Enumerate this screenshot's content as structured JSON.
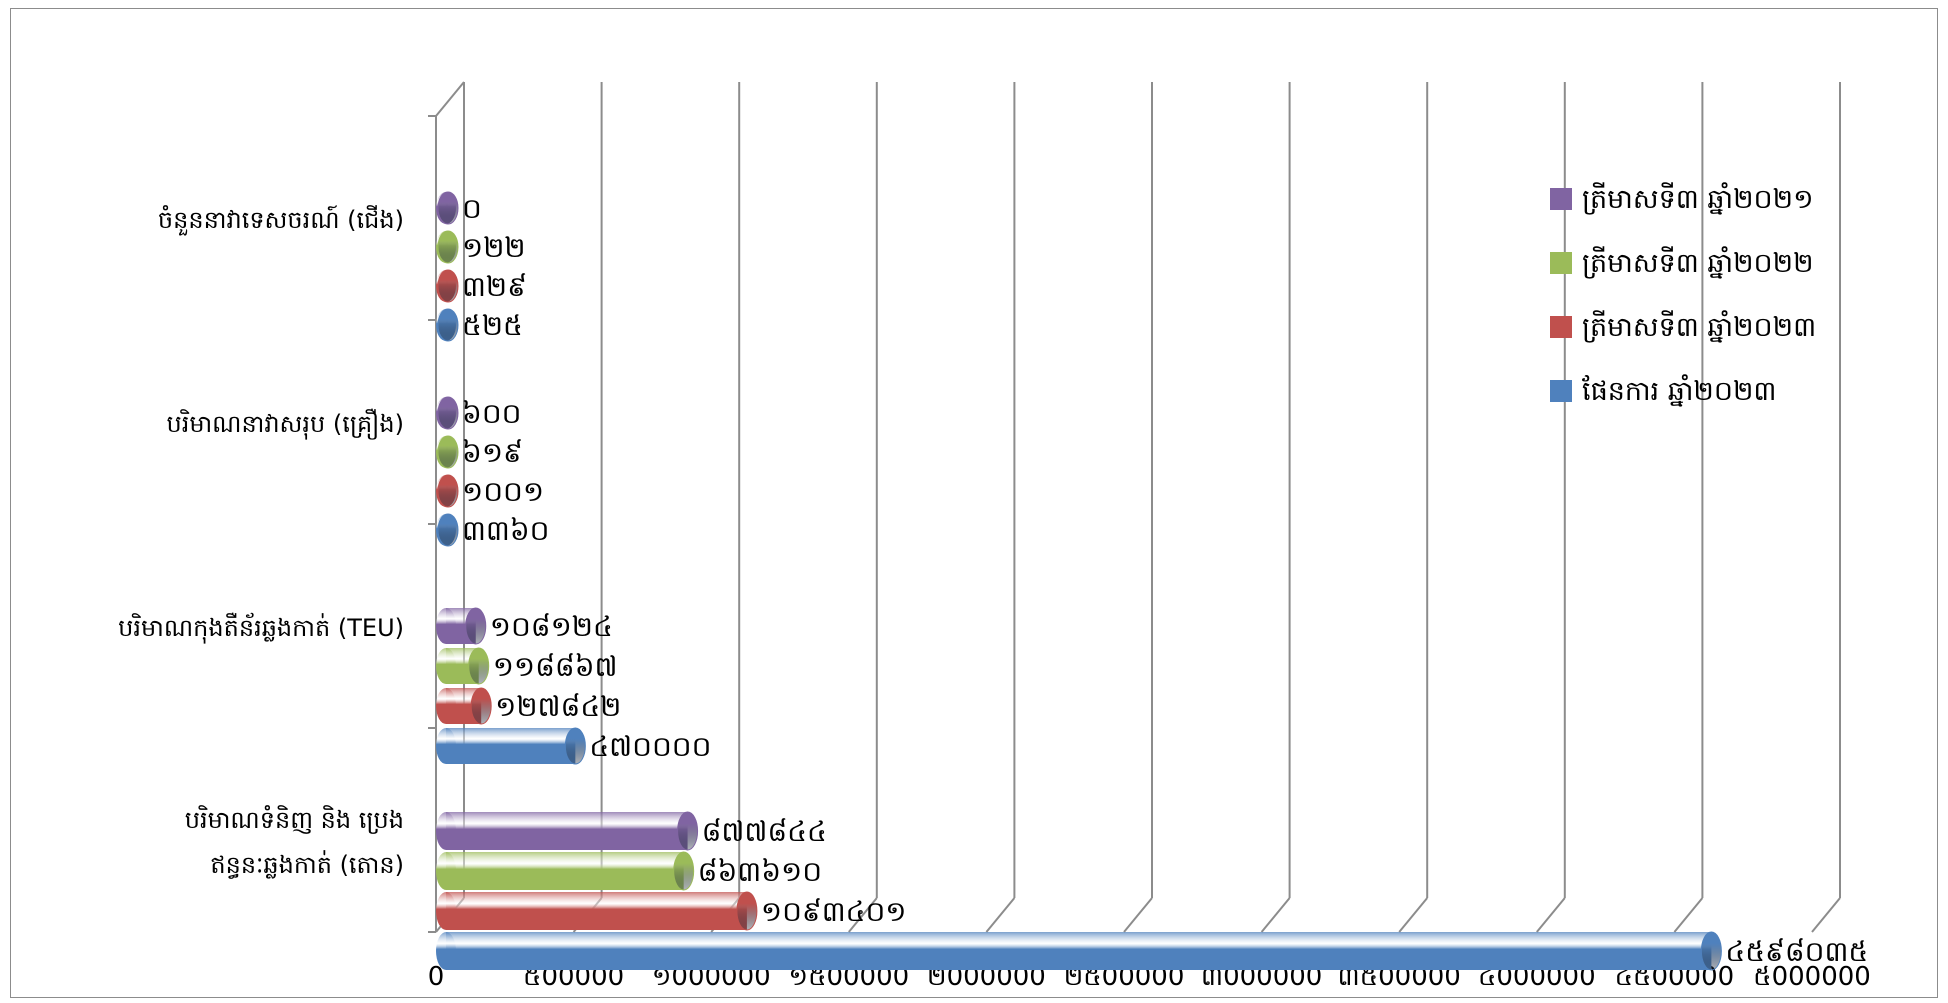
{
  "chart_data": {
    "type": "bar",
    "orientation": "horizontal",
    "style": "3d-cylinder",
    "categories": [
      "ចំនួននាវាទេសចរណ៍ (ជើង)",
      "បរិមាណនាវាសរុប (គ្រឿង)",
      "បរិមាណកុងតឺន័រឆ្លងកាត់ (TEU)",
      "បរិមាណទំនិញ និង ប្រេង ឥន្ធនៈឆ្លងកាត់ (តោន)"
    ],
    "series": [
      {
        "name": "ត្រីមាសទី៣ ឆ្នាំ២០២១",
        "color": "#8064a2",
        "values": [
          0,
          600,
          108124,
          877844
        ],
        "labels": [
          "០",
          "៦០០",
          "១០៨១២៤",
          "៨៧៧៨៤៤"
        ]
      },
      {
        "name": "ត្រីមាសទី៣ ឆ្នាំ២០២២",
        "color": "#9bbb59",
        "values": [
          122,
          619,
          118867,
          863610
        ],
        "labels": [
          "១២២",
          "៦១៩",
          "១១៨៨៦៧",
          "៨៦៣៦១០"
        ]
      },
      {
        "name": "ត្រីមាសទី៣ ឆ្នាំ២០២៣",
        "color": "#c0504d",
        "values": [
          329,
          1001,
          127842,
          1093401
        ],
        "labels": [
          "៣២៩",
          "១០០១",
          "១២៧៨៤២",
          "១០៩៣៤០១"
        ]
      },
      {
        "name": "ផែនការ ឆ្នាំ២០២៣",
        "color": "#4f81bd",
        "values": [
          525,
          3360,
          470000,
          4598035
        ],
        "labels": [
          "៥២៥",
          "៣៣៦០",
          "៤៧០០០០",
          "៤៥៩៨០៣៥"
        ]
      }
    ],
    "xlim": [
      0,
      5000000
    ],
    "x_ticks": [
      0,
      500000,
      1000000,
      1500000,
      2000000,
      2500000,
      3000000,
      3500000,
      4000000,
      4500000,
      5000000
    ],
    "x_tick_labels": [
      "0",
      "៥00000",
      "១000000",
      "១៥00000",
      "២000000",
      "២៥00000",
      "៣000000",
      "៣៥00000",
      "៤000000",
      "៤៥00000",
      "៥000000"
    ],
    "grid": true,
    "legend_position": "right"
  }
}
